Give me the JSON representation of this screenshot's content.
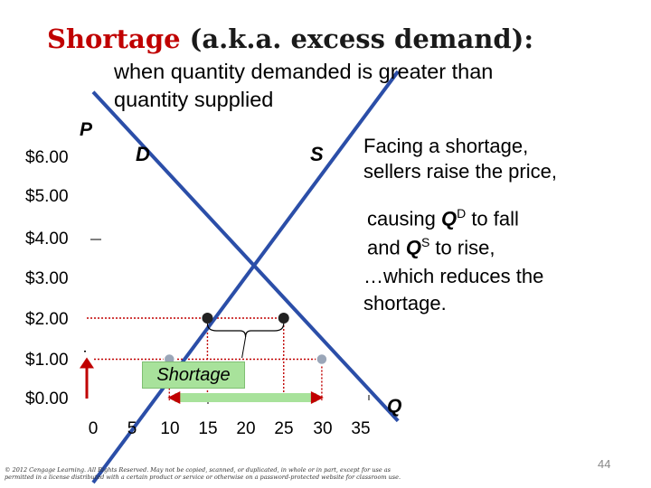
{
  "title": {
    "highlight": "Shortage",
    "rest": " (a.k.a. excess demand):"
  },
  "subtitle": {
    "line1": "when quantity demanded is greater than",
    "line2": "quantity supplied"
  },
  "axes": {
    "y_label": "P",
    "x_label": "Q",
    "price_ticks": [
      "$6.00",
      "$5.00",
      "$4.00",
      "$3.00",
      "$2.00",
      "$1.00",
      "$0.00"
    ],
    "qty_ticks": [
      "0",
      "5",
      "10",
      "15",
      "20",
      "25",
      "30",
      "35"
    ]
  },
  "curves": {
    "demand_label": "D",
    "supply_label": "S"
  },
  "annotations": {
    "shortage_label": "Shortage",
    "note1_line1": "Facing a shortage,",
    "note1_line2": "sellers raise the price,",
    "note2_pre1": "causing ",
    "note2_q1": "Q",
    "note2_sup1": "D",
    "note2_post1": " to fall",
    "note2_pre2": "and ",
    "note2_q2": "Q",
    "note2_sup2": "S",
    "note2_post2": " to rise,",
    "note3_line1": "…which reduces the",
    "note3_line2": "shortage."
  },
  "footer": {
    "copyright": "© 2012 Cengage Learning. All Rights Reserved. May not be copied, scanned, or duplicated, in whole or in part, except for use as permitted in a license distributed with a certain product or service or otherwise on a password-protected website for classroom use.",
    "slide_number": "44"
  },
  "colors": {
    "curve": "#2b4ea8",
    "accent": "#c00000",
    "shortage_fill": "#a8e29b",
    "marker": "#222222"
  },
  "chart_data": {
    "type": "line",
    "xlabel": "Q",
    "ylabel": "P",
    "xlim": [
      0,
      35
    ],
    "ylim": [
      0,
      6
    ],
    "series": [
      {
        "name": "D",
        "x": [
          0,
          40
        ],
        "y": [
          7.5,
          -0.5
        ]
      },
      {
        "name": "S",
        "x": [
          0,
          40
        ],
        "y": [
          -2,
          8
        ]
      }
    ],
    "points": [
      {
        "x": 10,
        "y": 1
      },
      {
        "x": 30,
        "y": 1
      },
      {
        "x": 15,
        "y": 2
      },
      {
        "x": 25,
        "y": 2
      }
    ],
    "guides": [
      {
        "price": 1,
        "q_from": 10,
        "q_to": 30
      },
      {
        "price": 2,
        "q_from": 15,
        "q_to": 25
      }
    ]
  }
}
